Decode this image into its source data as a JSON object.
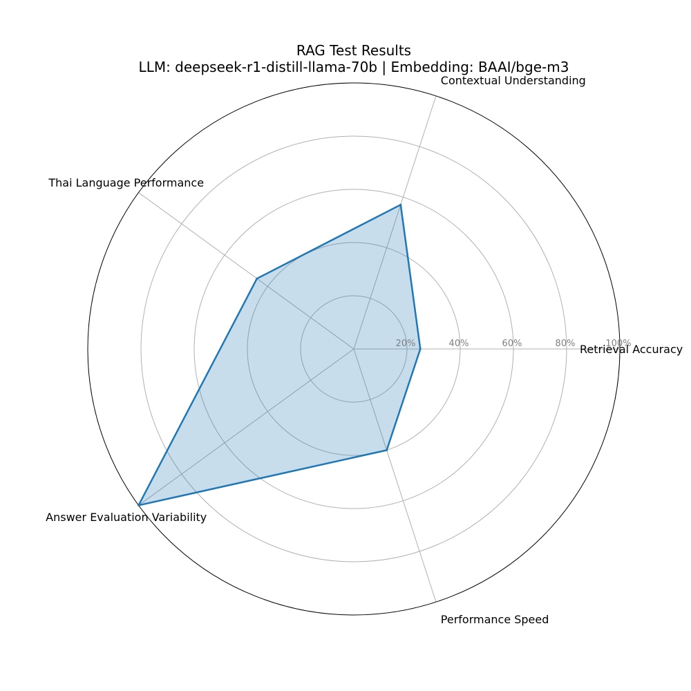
{
  "chart_data": {
    "type": "radar",
    "title": "RAG Test Results",
    "subtitle": "LLM: deepseek-r1-distill-llama-70b | Embedding: BAAI/bge-m3",
    "categories": [
      "Retrieval Accuracy",
      "Contextual Understanding",
      "Thai Language Performance",
      "Answer Evaluation Variability",
      "Performance Speed"
    ],
    "series": [
      {
        "name": "",
        "values": [
          25,
          57,
          45,
          100,
          40
        ]
      }
    ],
    "rlim": [
      0,
      100
    ],
    "radial_ticks": [
      "20%",
      "40%",
      "60%",
      "80%",
      "100%"
    ],
    "radial_tick_values": [
      20,
      40,
      60,
      80,
      100
    ],
    "grid": true,
    "colors": {
      "line": "#1f77b4",
      "fill": "#1f77b4",
      "grid": "#b0b0b0",
      "frame": "#000000",
      "tick": "#808080"
    }
  }
}
